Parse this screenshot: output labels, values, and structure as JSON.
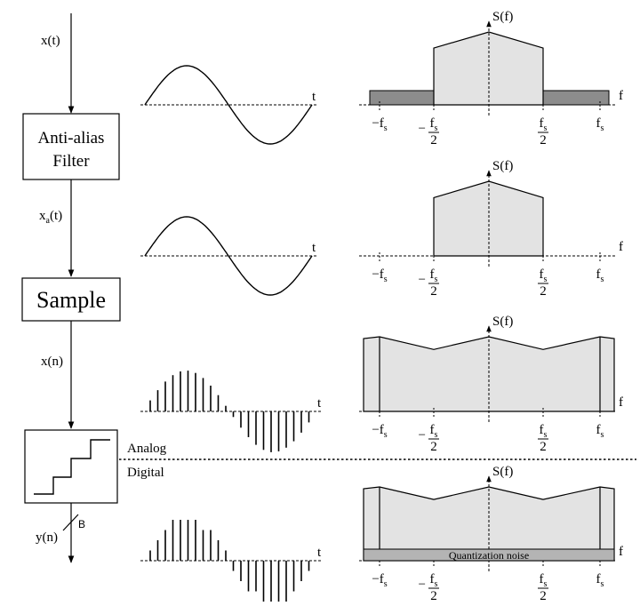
{
  "signals": {
    "x_t": "x(t)",
    "x_a_main": "x",
    "x_a_sub": "a",
    "x_a_tail": "(t)",
    "x_n": "x(n)",
    "y_n": "y(n)",
    "bits": "B"
  },
  "blocks": {
    "filter_line1": "Anti-alias",
    "filter_line2": "Filter",
    "sample": "Sample"
  },
  "boundary": {
    "analog": "Analog",
    "digital": "Digital"
  },
  "axes": {
    "time": "t",
    "freq": "f",
    "spectrum": "S(f)",
    "fs_minus": "−f",
    "fs": "f",
    "fs_sub": "s",
    "half_neg": "−",
    "half_num": "f",
    "half_den": "2"
  },
  "noise_label": "Quantization noise",
  "colors": {
    "spectrum_fill": "#e3e3e3",
    "out_of_band_fill": "#8c8c8c",
    "noise_fill": "#b4b4b4",
    "line": "#000000"
  }
}
